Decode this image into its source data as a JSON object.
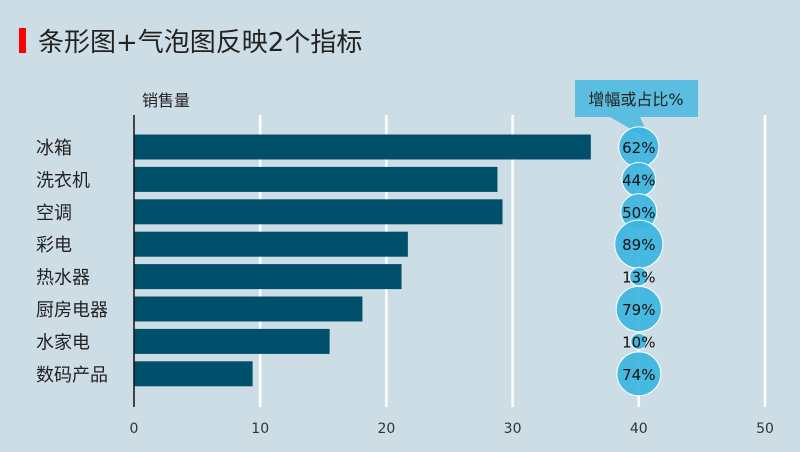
{
  "title": "条形图+气泡图反映2个指标",
  "chart_data": {
    "type": "bar",
    "title": "条形图+气泡图反映2个指标",
    "ylabel": "销售量",
    "bubble_label": "增幅或占比%",
    "categories": [
      "冰箱",
      "洗衣机",
      "空调",
      "彩电",
      "热水器",
      "厨房电器",
      "水家电",
      "数码产品"
    ],
    "values": [
      36.2,
      28.8,
      29.2,
      21.7,
      21.2,
      18.1,
      15.5,
      9.4
    ],
    "bubble_x": 40,
    "bubble_values": [
      62,
      44,
      50,
      89,
      13,
      79,
      10,
      74
    ],
    "bubble_labels": [
      "62%",
      "44%",
      "50%",
      "89%",
      "13%",
      "79%",
      "10%",
      "74%"
    ],
    "xlim": [
      0,
      50
    ],
    "xticks": [
      "0",
      "10",
      "20",
      "30",
      "40",
      "50"
    ],
    "grid": true,
    "colors": {
      "bar": "#004f6b",
      "bubble": "#3cb4e0",
      "callout": "#5bbde0"
    }
  }
}
